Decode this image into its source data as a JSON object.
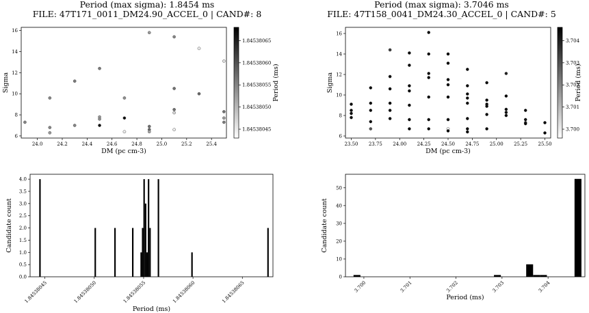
{
  "colorbar_colors": {
    "low": "#ffffff",
    "high": "#000000"
  },
  "panels": [
    {
      "title_line1": "Period (max sigma): 1.8454 ms",
      "title_line2": "FILE: 47T171_0011_DM24.90_ACCEL_0 | CAND#: 8"
    },
    {
      "title_line1": "Period (max sigma): 3.7046 ms",
      "title_line2": "FILE: 47T158_0041_DM24.30_ACCEL_0 | CAND#: 5"
    }
  ],
  "chart_data": [
    {
      "type": "scatter",
      "xlabel": "DM (pc cm-3)",
      "ylabel": "Sigma",
      "colorbar_label": "Period (ms)",
      "xlim": [
        23.87,
        25.52
      ],
      "ylim": [
        5.8,
        16.3
      ],
      "xticks": [
        "24.0",
        "24.2",
        "24.4",
        "24.6",
        "24.8",
        "25.0",
        "25.2",
        "25.4"
      ],
      "xtick_values": [
        24.0,
        24.2,
        24.4,
        24.6,
        24.8,
        25.0,
        25.2,
        25.4
      ],
      "yticks": [
        "6",
        "8",
        "10",
        "12",
        "14",
        "16"
      ],
      "ytick_values": [
        6,
        8,
        10,
        12,
        14,
        16
      ],
      "clim": [
        1.84538043,
        1.84538068
      ],
      "colorbar_ticks": [
        "1.84538045",
        "1.84538050",
        "1.84538055",
        "1.84538060",
        "1.84538065"
      ],
      "colorbar_tick_values": [
        1.84538045,
        1.8453805,
        1.84538055,
        1.8453806,
        1.84538065
      ],
      "points": [
        {
          "x": 23.9,
          "y": 7.3,
          "c": 1.84538055
        },
        {
          "x": 24.1,
          "y": 9.6,
          "c": 1.84538055
        },
        {
          "x": 24.1,
          "y": 6.8,
          "c": 1.84538055
        },
        {
          "x": 24.1,
          "y": 6.3,
          "c": 1.84538053
        },
        {
          "x": 24.3,
          "y": 11.2,
          "c": 1.84538056
        },
        {
          "x": 24.3,
          "y": 7.0,
          "c": 1.84538055
        },
        {
          "x": 24.5,
          "y": 12.4,
          "c": 1.84538056
        },
        {
          "x": 24.5,
          "y": 7.8,
          "c": 1.84538053
        },
        {
          "x": 24.5,
          "y": 7.6,
          "c": 1.84538054
        },
        {
          "x": 24.5,
          "y": 7.0,
          "c": 1.84538067
        },
        {
          "x": 24.7,
          "y": 9.6,
          "c": 1.84538054
        },
        {
          "x": 24.7,
          "y": 7.7,
          "c": 1.84538067
        },
        {
          "x": 24.7,
          "y": 6.4,
          "c": 1.84538045
        },
        {
          "x": 24.9,
          "y": 15.8,
          "c": 1.84538053
        },
        {
          "x": 24.9,
          "y": 6.9,
          "c": 1.84538057
        },
        {
          "x": 24.9,
          "y": 6.6,
          "c": 1.84538058
        },
        {
          "x": 24.9,
          "y": 6.4,
          "c": 1.84538052
        },
        {
          "x": 25.1,
          "y": 15.4,
          "c": 1.84538055
        },
        {
          "x": 25.1,
          "y": 10.5,
          "c": 1.84538057
        },
        {
          "x": 25.1,
          "y": 8.5,
          "c": 1.84538057
        },
        {
          "x": 25.1,
          "y": 8.2,
          "c": 1.84538047
        },
        {
          "x": 25.1,
          "y": 6.6,
          "c": 1.84538045
        },
        {
          "x": 25.3,
          "y": 14.3,
          "c": 1.84538045
        },
        {
          "x": 25.3,
          "y": 10.0,
          "c": 1.84538058
        },
        {
          "x": 25.5,
          "y": 13.1,
          "c": 1.84538046
        },
        {
          "x": 25.5,
          "y": 8.3,
          "c": 1.84538057
        },
        {
          "x": 25.5,
          "y": 7.7,
          "c": 1.84538053
        },
        {
          "x": 25.5,
          "y": 7.3,
          "c": 1.84538056
        }
      ]
    },
    {
      "type": "scatter",
      "xlabel": "DM (pc cm-3)",
      "ylabel": "Sigma",
      "colorbar_label": "Period (ms)",
      "xlim": [
        23.44,
        25.56
      ],
      "ylim": [
        5.8,
        16.6
      ],
      "xticks": [
        "23.50",
        "23.75",
        "24.00",
        "24.25",
        "24.50",
        "24.75",
        "25.00",
        "25.25",
        "25.50"
      ],
      "xtick_values": [
        23.5,
        23.75,
        24.0,
        24.25,
        24.5,
        24.75,
        25.0,
        25.25,
        25.5
      ],
      "yticks": [
        "6",
        "8",
        "10",
        "12",
        "14",
        "16"
      ],
      "ytick_values": [
        6,
        8,
        10,
        12,
        14,
        16
      ],
      "clim": [
        3.6996,
        3.7046
      ],
      "colorbar_ticks": [
        "3.700",
        "3.701",
        "3.702",
        "3.703",
        "3.704"
      ],
      "colorbar_tick_values": [
        3.7,
        3.701,
        3.702,
        3.703,
        3.704
      ],
      "points": [
        {
          "x": 23.5,
          "y": 9.1,
          "c": 3.7046
        },
        {
          "x": 23.5,
          "y": 8.5,
          "c": 3.7046
        },
        {
          "x": 23.5,
          "y": 8.2,
          "c": 3.7046
        },
        {
          "x": 23.5,
          "y": 7.8,
          "c": 3.7046
        },
        {
          "x": 23.7,
          "y": 10.7,
          "c": 3.7046
        },
        {
          "x": 23.7,
          "y": 9.2,
          "c": 3.7046
        },
        {
          "x": 23.7,
          "y": 8.5,
          "c": 3.7046
        },
        {
          "x": 23.7,
          "y": 7.4,
          "c": 3.7046
        },
        {
          "x": 23.7,
          "y": 6.7,
          "c": 3.703
        },
        {
          "x": 23.9,
          "y": 14.4,
          "c": 3.7035
        },
        {
          "x": 23.9,
          "y": 11.8,
          "c": 3.7046
        },
        {
          "x": 23.9,
          "y": 10.6,
          "c": 3.7046
        },
        {
          "x": 23.9,
          "y": 9.2,
          "c": 3.7046
        },
        {
          "x": 23.9,
          "y": 8.5,
          "c": 3.7046
        },
        {
          "x": 23.9,
          "y": 7.7,
          "c": 3.7046
        },
        {
          "x": 24.1,
          "y": 14.1,
          "c": 3.7046
        },
        {
          "x": 24.1,
          "y": 12.9,
          "c": 3.7046
        },
        {
          "x": 24.1,
          "y": 10.9,
          "c": 3.7046
        },
        {
          "x": 24.1,
          "y": 10.4,
          "c": 3.7046
        },
        {
          "x": 24.1,
          "y": 9.0,
          "c": 3.7046
        },
        {
          "x": 24.1,
          "y": 7.6,
          "c": 3.7046
        },
        {
          "x": 24.1,
          "y": 6.7,
          "c": 3.7046
        },
        {
          "x": 24.3,
          "y": 16.1,
          "c": 3.7046
        },
        {
          "x": 24.3,
          "y": 14.0,
          "c": 3.7046
        },
        {
          "x": 24.3,
          "y": 12.1,
          "c": 3.7046
        },
        {
          "x": 24.3,
          "y": 11.7,
          "c": 3.7046
        },
        {
          "x": 24.3,
          "y": 9.8,
          "c": 3.7046
        },
        {
          "x": 24.3,
          "y": 7.6,
          "c": 3.7046
        },
        {
          "x": 24.3,
          "y": 6.7,
          "c": 3.7046
        },
        {
          "x": 24.5,
          "y": 14.0,
          "c": 3.7046
        },
        {
          "x": 24.5,
          "y": 13.1,
          "c": 3.7046
        },
        {
          "x": 24.5,
          "y": 11.5,
          "c": 3.7046
        },
        {
          "x": 24.5,
          "y": 11.0,
          "c": 3.7046
        },
        {
          "x": 24.5,
          "y": 9.8,
          "c": 3.7046
        },
        {
          "x": 24.5,
          "y": 7.6,
          "c": 3.7046
        },
        {
          "x": 24.5,
          "y": 6.7,
          "c": 3.6998
        },
        {
          "x": 24.5,
          "y": 6.5,
          "c": 3.7046
        },
        {
          "x": 24.7,
          "y": 12.5,
          "c": 3.7046
        },
        {
          "x": 24.7,
          "y": 10.9,
          "c": 3.7046
        },
        {
          "x": 24.7,
          "y": 10.1,
          "c": 3.7046
        },
        {
          "x": 24.7,
          "y": 9.7,
          "c": 3.7046
        },
        {
          "x": 24.7,
          "y": 9.2,
          "c": 3.7046
        },
        {
          "x": 24.7,
          "y": 7.7,
          "c": 3.7046
        },
        {
          "x": 24.7,
          "y": 6.7,
          "c": 3.7046
        },
        {
          "x": 24.7,
          "y": 6.4,
          "c": 3.7046
        },
        {
          "x": 24.9,
          "y": 11.2,
          "c": 3.7046
        },
        {
          "x": 24.9,
          "y": 9.5,
          "c": 3.7046
        },
        {
          "x": 24.9,
          "y": 9.1,
          "c": 3.7046
        },
        {
          "x": 24.9,
          "y": 8.9,
          "c": 3.7046
        },
        {
          "x": 24.9,
          "y": 8.1,
          "c": 3.7046
        },
        {
          "x": 24.9,
          "y": 6.7,
          "c": 3.7046
        },
        {
          "x": 25.1,
          "y": 12.1,
          "c": 3.704
        },
        {
          "x": 25.1,
          "y": 9.9,
          "c": 3.7046
        },
        {
          "x": 25.1,
          "y": 8.6,
          "c": 3.7046
        },
        {
          "x": 25.1,
          "y": 8.3,
          "c": 3.7046
        },
        {
          "x": 25.1,
          "y": 8.0,
          "c": 3.7046
        },
        {
          "x": 25.3,
          "y": 8.5,
          "c": 3.7046
        },
        {
          "x": 25.3,
          "y": 7.6,
          "c": 3.7046
        },
        {
          "x": 25.3,
          "y": 7.3,
          "c": 3.7046
        },
        {
          "x": 25.3,
          "y": 7.2,
          "c": 3.7046
        },
        {
          "x": 25.5,
          "y": 7.3,
          "c": 3.7046
        },
        {
          "x": 25.5,
          "y": 6.3,
          "c": 3.7046
        }
      ]
    },
    {
      "type": "bar",
      "xlabel": "Period (ms)",
      "ylabel": "Candidate count",
      "xlim": [
        1.845380435,
        1.845380681
      ],
      "ylim": [
        0,
        4.2
      ],
      "xticks": [
        "1.84538045",
        "1.84538050",
        "1.84538055",
        "1.84538060",
        "1.84538065"
      ],
      "xtick_values": [
        1.84538045,
        1.8453805,
        1.84538055,
        1.8453806,
        1.84538065
      ],
      "yticks": [
        "0.0",
        "0.5",
        "1.0",
        "1.5",
        "2.0",
        "2.5",
        "3.0",
        "3.5",
        "4.0"
      ],
      "ytick_values": [
        0,
        0.5,
        1.0,
        1.5,
        2.0,
        2.5,
        3.0,
        3.5,
        4.0
      ],
      "bin_width": 1.5e-09,
      "bars": [
        {
          "x": 1.845380445,
          "count": 4
        },
        {
          "x": 1.845380501,
          "count": 2
        },
        {
          "x": 1.845380521,
          "count": 2
        },
        {
          "x": 1.845380539,
          "count": 2
        },
        {
          "x": 1.8453805475,
          "count": 1
        },
        {
          "x": 1.845380549,
          "count": 2
        },
        {
          "x": 1.8453805505,
          "count": 4
        },
        {
          "x": 1.845380552,
          "count": 3
        },
        {
          "x": 1.8453805535,
          "count": 1
        },
        {
          "x": 1.845380555,
          "count": 4
        },
        {
          "x": 1.8453805565,
          "count": 2
        },
        {
          "x": 1.845380565,
          "count": 4
        },
        {
          "x": 1.845380599,
          "count": 1
        },
        {
          "x": 1.845380676,
          "count": 2
        }
      ]
    },
    {
      "type": "bar",
      "xlabel": "Period (ms)",
      "ylabel": "Candidate count",
      "xlim": [
        3.6996,
        3.7048
      ],
      "ylim": [
        0,
        57.6
      ],
      "xticks": [
        "3.700",
        "3.701",
        "3.702",
        "3.703",
        "3.704"
      ],
      "xtick_values": [
        3.7,
        3.701,
        3.702,
        3.703,
        3.704
      ],
      "yticks": [
        "0",
        "10",
        "20",
        "30",
        "40",
        "50"
      ],
      "ytick_values": [
        0,
        10,
        20,
        30,
        40,
        50
      ],
      "bin_width": 0.00015,
      "bars": [
        {
          "x": 3.69985,
          "count": 1
        },
        {
          "x": 3.7029,
          "count": 1
        },
        {
          "x": 3.7036,
          "count": 7
        },
        {
          "x": 3.70375,
          "count": 1
        },
        {
          "x": 3.7039,
          "count": 1
        },
        {
          "x": 3.70465,
          "count": 55
        }
      ]
    }
  ]
}
